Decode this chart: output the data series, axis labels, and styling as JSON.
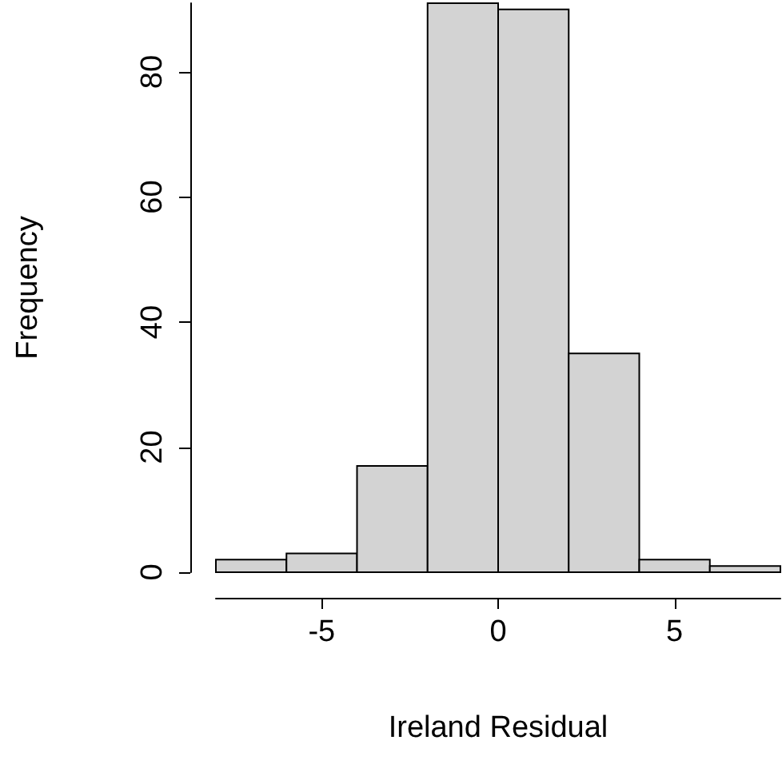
{
  "chart_data": {
    "type": "histogram",
    "xlabel": "Ireland Residual",
    "ylabel": "Frequency",
    "bins": [
      -8,
      -6,
      -4,
      -2,
      0,
      2,
      4,
      6,
      8
    ],
    "values": [
      2,
      3,
      17,
      91,
      90,
      35,
      2,
      1
    ],
    "color": "#d3d3d3",
    "xlim": [
      -8,
      8
    ],
    "xticks": [
      -5,
      0,
      5
    ],
    "ylim": [
      0,
      91
    ],
    "yticks": [
      0,
      20,
      40,
      60,
      80
    ],
    "grid": false
  }
}
